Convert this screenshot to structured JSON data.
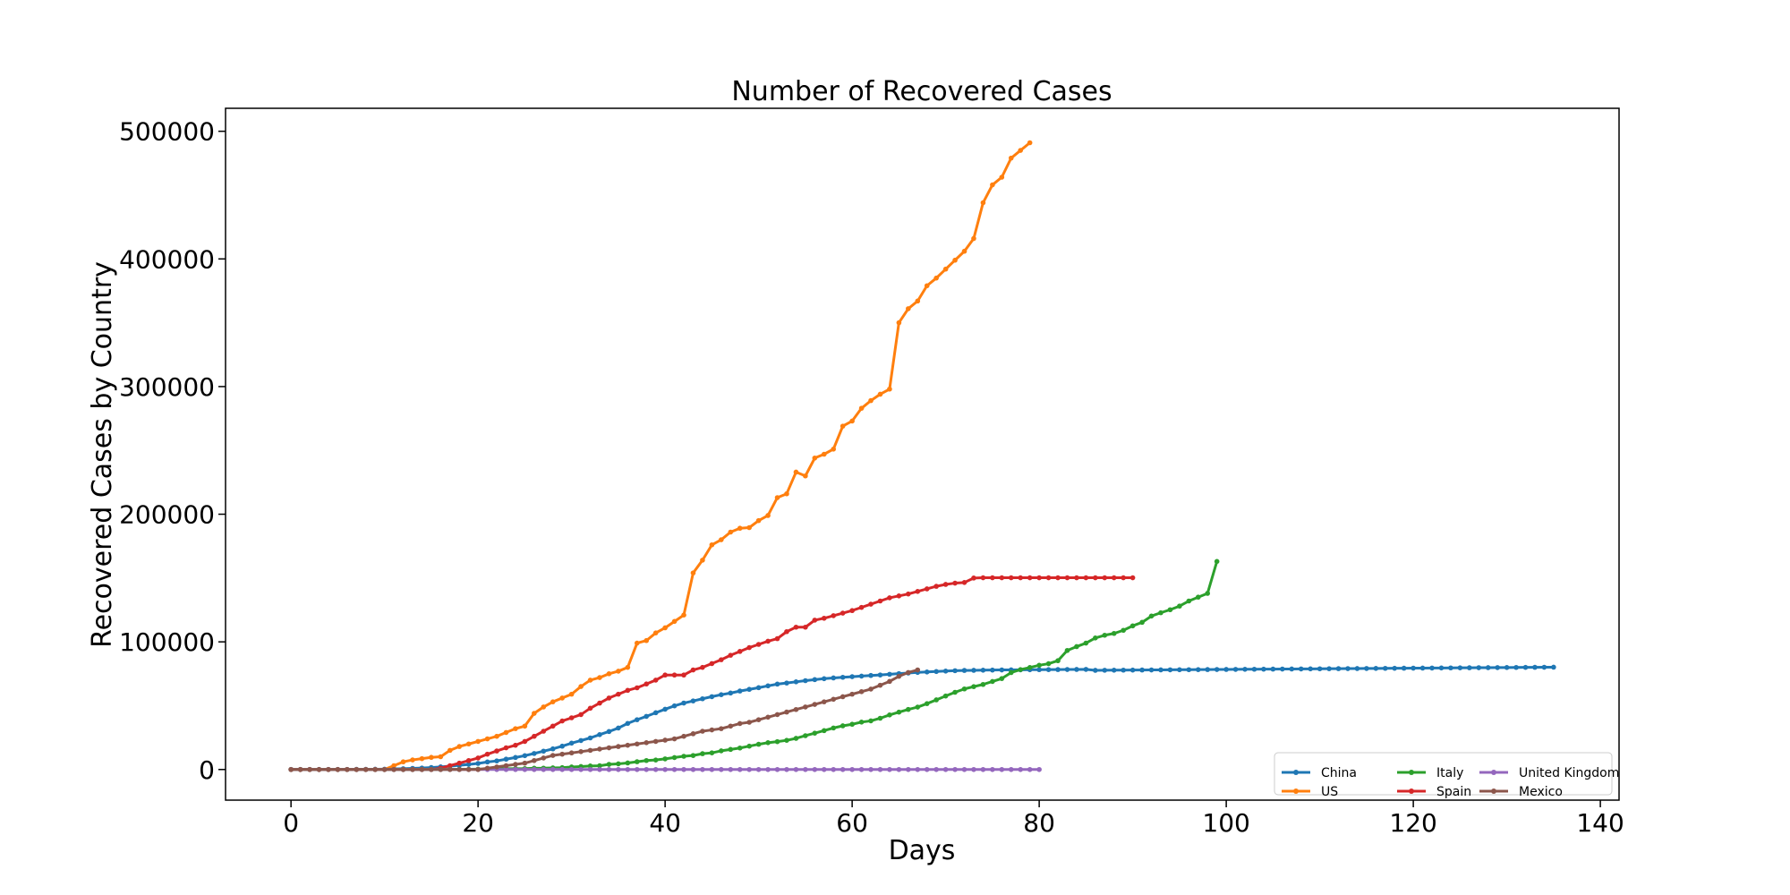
{
  "chart_data": {
    "type": "line",
    "title": "Number of Recovered Cases",
    "xlabel": "Days",
    "ylabel": "Recovered Cases by Country",
    "xlim": [
      -7,
      142
    ],
    "ylim": [
      -24000,
      518000
    ],
    "xticks": [
      0,
      20,
      40,
      60,
      80,
      100,
      120,
      140
    ],
    "yticks": [
      0,
      100000,
      200000,
      300000,
      400000,
      500000
    ],
    "grid": false,
    "legend_position": "lower-right",
    "legend_columns": 3,
    "series": [
      {
        "name": "China",
        "color": "#1f77b4",
        "x_start": 0,
        "values": [
          28,
          30,
          36,
          39,
          52,
          61,
          107,
          126,
          143,
          222,
          284,
          475,
          632,
          892,
          1153,
          1540,
          2050,
          2649,
          3281,
          3996,
          4740,
          5911,
          6723,
          8096,
          9419,
          10844,
          12552,
          14376,
          16155,
          18264,
          20659,
          22699,
          24734,
          27323,
          29745,
          32495,
          36117,
          39002,
          41625,
          44462,
          47204,
          49856,
          52045,
          53726,
          55404,
          57065,
          58600,
          59897,
          61475,
          62793,
          64111,
          65541,
          66911,
          67749,
          68679,
          69601,
          70420,
          71150,
          71740,
          72244,
          72703,
          73159,
          73650,
          74051,
          74600,
          75100,
          75582,
          76052,
          76405,
          76760,
          77100,
          77400,
          77600,
          77700,
          77800,
          77900,
          78000,
          78050,
          78100,
          78150,
          78200,
          78250,
          78300,
          78350,
          78400,
          78450,
          77700,
          77750,
          77800,
          77850,
          77900,
          77950,
          78000,
          78050,
          78100,
          78150,
          78200,
          78250,
          78300,
          78350,
          78400,
          78450,
          78500,
          78550,
          78600,
          78650,
          78700,
          78750,
          78800,
          78850,
          78900,
          78950,
          79000,
          79050,
          79100,
          79150,
          79200,
          79250,
          79300,
          79350,
          79400,
          79450,
          79500,
          79550,
          79600,
          79650,
          79700,
          79750,
          79800,
          79850,
          79900,
          79950,
          80000,
          80050,
          80100,
          80150
        ]
      },
      {
        "name": "US",
        "color": "#ff7f0e",
        "x_start": 0,
        "values": [
          0,
          0,
          0,
          0,
          0,
          0,
          0,
          0,
          0,
          0,
          0,
          3000,
          6000,
          7500,
          8500,
          9500,
          10000,
          15000,
          18000,
          20000,
          22000,
          24000,
          26000,
          29000,
          32000,
          34000,
          44000,
          49000,
          53000,
          56000,
          59000,
          65000,
          70000,
          72000,
          75000,
          77000,
          80000,
          99000,
          101000,
          107000,
          111000,
          116000,
          121000,
          154000,
          164000,
          176000,
          180000,
          186000,
          189000,
          189500,
          195000,
          199000,
          213000,
          216000,
          233000,
          230000,
          244000,
          247000,
          251000,
          269000,
          273000,
          283000,
          289000,
          294000,
          298000,
          350000,
          361000,
          367000,
          379000,
          385000,
          392000,
          399000,
          406000,
          416000,
          444000,
          458000,
          464000,
          479000,
          485000,
          491000
        ]
      },
      {
        "name": "Spain",
        "color": "#d62728",
        "x_start": 0,
        "values": [
          0,
          0,
          0,
          0,
          0,
          0,
          0,
          0,
          0,
          0,
          0,
          0,
          0,
          0,
          0,
          0,
          1000,
          3000,
          5000,
          7000,
          9000,
          12000,
          14500,
          17000,
          19000,
          22000,
          26000,
          30000,
          34000,
          38000,
          40500,
          43000,
          48000,
          52000,
          56000,
          59000,
          62000,
          64000,
          67000,
          70000,
          74000,
          74000,
          74000,
          78000,
          80000,
          83000,
          86000,
          89500,
          92500,
          95500,
          98000,
          100500,
          102500,
          108000,
          111500,
          111500,
          117000,
          118500,
          120500,
          122500,
          124500,
          127000,
          129500,
          132000,
          134500,
          136000,
          137500,
          139500,
          141500,
          143500,
          145000,
          146000,
          146500,
          150000,
          150200,
          150200,
          150200,
          150200,
          150200,
          150200,
          150200,
          150200,
          150200,
          150200,
          150200,
          150200,
          150200,
          150200,
          150200,
          150200,
          150200
        ]
      },
      {
        "name": "Italy",
        "color": "#2ca02c",
        "x_start": 0,
        "values": [
          0,
          0,
          0,
          0,
          0,
          0,
          0,
          0,
          0,
          0,
          0,
          1,
          2,
          2,
          45,
          46,
          46,
          83,
          149,
          160,
          276,
          414,
          523,
          589,
          622,
          724,
          1004,
          1045,
          1258,
          1439,
          1966,
          2335,
          2749,
          2941,
          4025,
          4440,
          5129,
          6072,
          7024,
          7432,
          8326,
          9362,
          10361,
          10950,
          12384,
          13030,
          14620,
          15729,
          16847,
          18278,
          19758,
          20996,
          21815,
          22837,
          24392,
          26491,
          28470,
          30455,
          32534,
          34211,
          35435,
          37130,
          38092,
          40164,
          42727,
          44927,
          47055,
          48877,
          51600,
          54543,
          57576,
          60498,
          63120,
          64928,
          66624,
          68941,
          71252,
          75945,
          78249,
          79914,
          81654,
          82879,
          85231,
          93245,
          96276,
          99023,
          103031,
          105186,
          106587,
          109039,
          112541,
          115288,
          120205,
          122810,
          125176,
          128000,
          132000,
          135000,
          138000,
          163000
        ]
      },
      {
        "name": "United Kingdom",
        "color": "#9467bd",
        "x_start": 0,
        "values": [
          0,
          0,
          0,
          0,
          0,
          0,
          0,
          0,
          0,
          0,
          0,
          0,
          0,
          0,
          0,
          0,
          0,
          0,
          0,
          0,
          0,
          0,
          0,
          0,
          0,
          0,
          0,
          0,
          0,
          0,
          0,
          0,
          0,
          0,
          0,
          0,
          0,
          0,
          0,
          0,
          0,
          0,
          0,
          0,
          0,
          0,
          0,
          0,
          0,
          0,
          0,
          0,
          0,
          0,
          0,
          0,
          0,
          0,
          0,
          0,
          0,
          0,
          0,
          0,
          0,
          0,
          0,
          0,
          0,
          0,
          0,
          0,
          0,
          0,
          0,
          0,
          0,
          0,
          0,
          0,
          0
        ]
      },
      {
        "name": "Mexico",
        "color": "#8c564b",
        "x_start": 0,
        "values": [
          0,
          0,
          0,
          0,
          0,
          0,
          0,
          0,
          0,
          0,
          0,
          0,
          0,
          0,
          0,
          0,
          0,
          0,
          0,
          0,
          0,
          1000,
          2000,
          3000,
          4000,
          5000,
          7000,
          9000,
          11000,
          12000,
          13000,
          14000,
          15000,
          16000,
          17000,
          18000,
          19000,
          20000,
          21000,
          22000,
          23000,
          24000,
          26000,
          28000,
          30000,
          31000,
          32000,
          34000,
          36000,
          37000,
          39000,
          41000,
          43000,
          45000,
          47000,
          49000,
          51000,
          53000,
          55000,
          57000,
          59000,
          61000,
          63000,
          66000,
          69000,
          73000,
          76000,
          78000
        ]
      }
    ]
  }
}
